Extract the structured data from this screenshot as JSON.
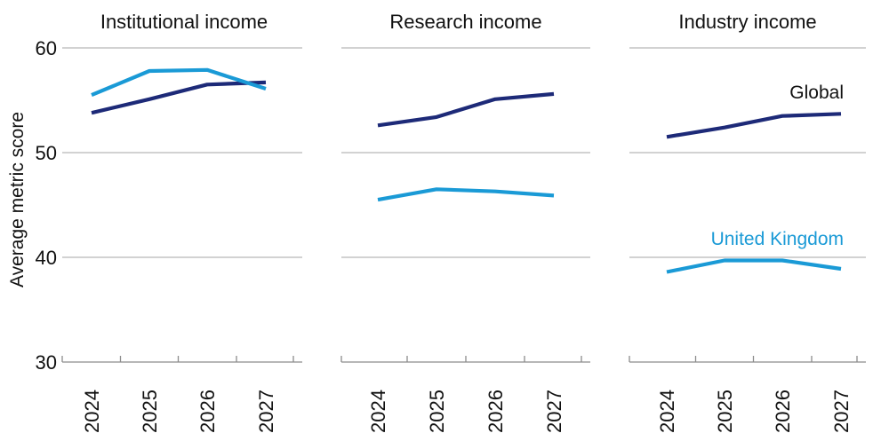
{
  "chart_data": [
    {
      "type": "line",
      "title": "Institutional income",
      "ylabel": "Average metric score",
      "ylim": [
        30,
        60
      ],
      "y_ticks": [
        "30",
        "40",
        "50",
        "60"
      ],
      "categories": [
        "2024",
        "2025",
        "2026",
        "2027"
      ],
      "series": [
        {
          "name": "Global",
          "color": "#1d2a78",
          "values": [
            53.8,
            55.1,
            56.5,
            56.7
          ]
        },
        {
          "name": "United Kingdom",
          "color": "#1a9ad6",
          "values": [
            55.5,
            57.8,
            57.9,
            56.1
          ]
        }
      ]
    },
    {
      "type": "line",
      "title": "Research income",
      "ylim": [
        30,
        60
      ],
      "categories": [
        "2024",
        "2025",
        "2026",
        "2027"
      ],
      "series": [
        {
          "name": "Global",
          "color": "#1d2a78",
          "values": [
            52.6,
            53.4,
            55.1,
            55.6
          ]
        },
        {
          "name": "United Kingdom",
          "color": "#1a9ad6",
          "values": [
            45.5,
            46.5,
            46.3,
            45.9
          ]
        }
      ]
    },
    {
      "type": "line",
      "title": "Industry income",
      "ylim": [
        30,
        60
      ],
      "categories": [
        "2024",
        "2025",
        "2026",
        "2027"
      ],
      "series": [
        {
          "name": "Global",
          "color": "#1d2a78",
          "values": [
            51.5,
            52.4,
            53.5,
            53.7
          ]
        },
        {
          "name": "United Kingdom",
          "color": "#1a9ad6",
          "values": [
            38.6,
            39.7,
            39.7,
            38.9
          ]
        }
      ]
    }
  ]
}
